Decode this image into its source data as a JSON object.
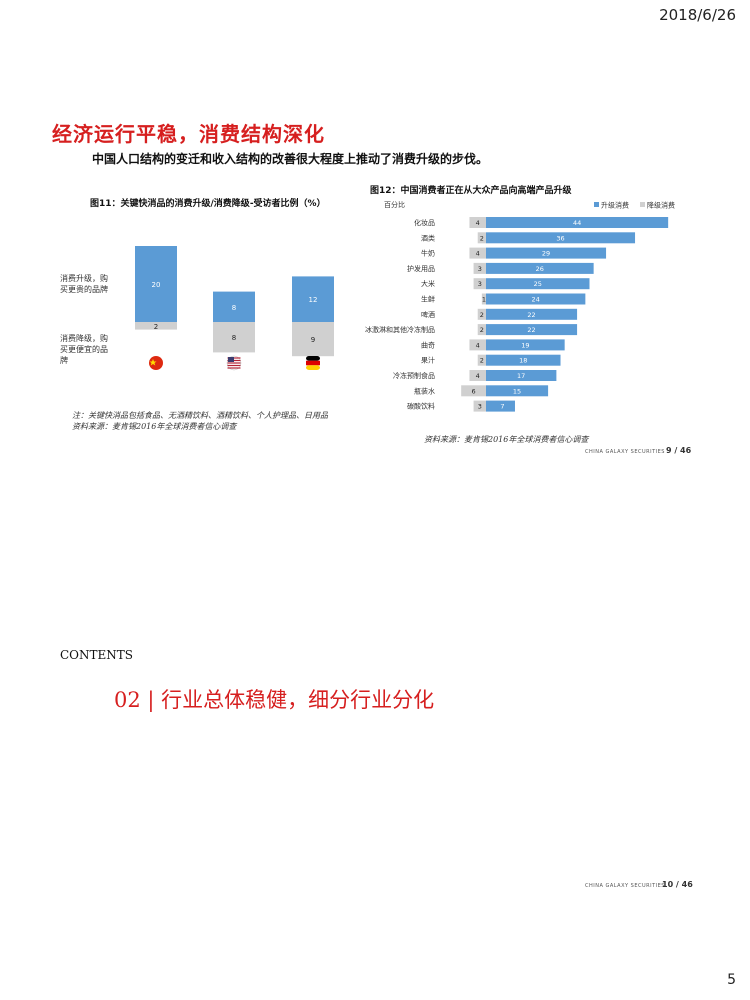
{
  "header": {
    "date": "2018/6/26"
  },
  "slide1": {
    "title": "经济运行平稳，消费结构深化",
    "subtitle": "中国人口结构的变迁和收入结构的改善很大程度上推动了消费升级的步伐。",
    "footer_brand": "CHINA GALAXY SECURITIES",
    "footer_page": "9 / 46"
  },
  "chart_data": [
    {
      "type": "bar",
      "title": "图11：关键快消品的消费升级/消费降级-受访者比例（%）",
      "categories": [
        "中国",
        "美国",
        "德国"
      ],
      "series": [
        {
          "name": "消费升级，购买更贵的品牌",
          "values": [
            20,
            8,
            12
          ]
        },
        {
          "name": "消费降级，购买更便宜的品牌",
          "values": [
            2,
            8,
            9
          ]
        }
      ],
      "legend_labels": [
        "消费升级，购买更贵的品牌",
        "消费降级，购买更便宜的品牌"
      ],
      "note": "注：关键快消品包括食品、无酒精饮料、酒精饮料、个人护理品、日用品",
      "source": "资料来源：麦肯锡2016年全球消费者信心调查",
      "colors": {
        "upgrade": "#5b9bd5",
        "downgrade": "#d0d0d0"
      }
    },
    {
      "type": "bar",
      "orientation": "horizontal",
      "title": "图12：中国消费者正在从大众产品向高端产品升级",
      "unit_label": "百分比",
      "categories": [
        "化妆品",
        "酒类",
        "牛奶",
        "护发用品",
        "大米",
        "生鲜",
        "啤酒",
        "冰激淋和其他冷冻制品",
        "曲奇",
        "果汁",
        "冷冻预制食品",
        "瓶装水",
        "碳酸饮料"
      ],
      "series": [
        {
          "name": "升级消费",
          "values": [
            44,
            36,
            29,
            26,
            25,
            24,
            22,
            22,
            19,
            18,
            17,
            15,
            7
          ]
        },
        {
          "name": "降级消费",
          "values": [
            4,
            2,
            4,
            3,
            3,
            1,
            2,
            2,
            4,
            2,
            4,
            6,
            3
          ]
        }
      ],
      "source": "资料来源：麦肯锡2016年全球消费者信心调查",
      "colors": {
        "upgrade": "#5b9bd5",
        "downgrade": "#d0d0d0"
      }
    }
  ],
  "slide2": {
    "contents_label": "CONTENTS",
    "section_title": "02 | 行业总体稳健，细分行业分化",
    "footer_brand": "CHINA GALAXY SECURITIES",
    "footer_page": "10 / 46"
  },
  "page_number": "5"
}
